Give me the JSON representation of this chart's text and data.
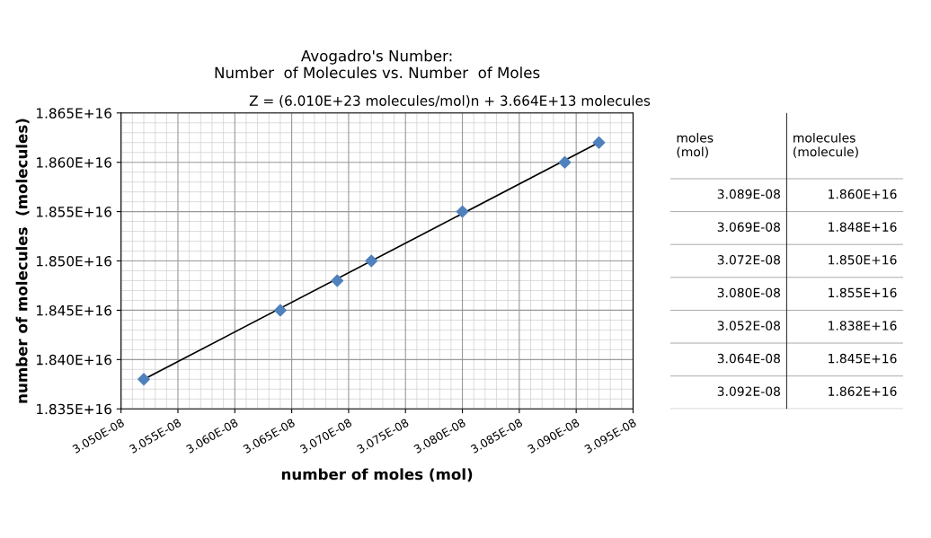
{
  "chart_data": {
    "type": "scatter",
    "title": "Avogadro's Number:\nNumber  of Molecules vs. Number  of Moles",
    "xlabel": "number of moles (mol)",
    "ylabel": "number of molecules  (molecules)",
    "x": [
      3.089e-08,
      3.069e-08,
      3.072e-08,
      3.08e-08,
      3.052e-08,
      3.064e-08,
      3.092e-08
    ],
    "series": [
      {
        "color": "#4f81bd",
        "marker": "diamond",
        "values": [
          1.86e+16,
          1.848e+16,
          1.85e+16,
          1.855e+16,
          1.838e+16,
          1.845e+16,
          1.862e+16
        ]
      },
      {
        "type": "line",
        "color": "#000000",
        "marker": "none",
        "line_style": "solid",
        "x": [
          3.052e-08,
          3.092e-08
        ],
        "values": [
          1.838e+16,
          1.862e+16
        ]
      }
    ],
    "annotations": [
      "Z = (6.010E+23 molecules/mol)n + 3.664E+13 molecules",
      "moles\n(mol)",
      "molecules\n(molecule)",
      "3.089E-08",
      "1.860E+16",
      "3.069E-08",
      "1.848E+16",
      "3.072E-08",
      "1.850E+16",
      "3.080E-08",
      "1.855E+16",
      "3.052E-08",
      "1.838E+16",
      "3.064E-08",
      "1.845E+16",
      "3.092E-08",
      "1.862E+16"
    ],
    "xlim": [
      3.05e-08,
      3.095e-08
    ],
    "xticks": [
      {
        "value": 3.05e-08,
        "label": "3.050E-08"
      },
      {
        "value": 3.055e-08,
        "label": "3.055E-08"
      },
      {
        "value": 3.06e-08,
        "label": "3.060E-08"
      },
      {
        "value": 3.065e-08,
        "label": "3.065E-08"
      },
      {
        "value": 3.07e-08,
        "label": "3.070E-08"
      },
      {
        "value": 3.075e-08,
        "label": "3.075E-08"
      },
      {
        "value": 3.08e-08,
        "label": "3.080E-08"
      },
      {
        "value": 3.085e-08,
        "label": "3.085E-08"
      },
      {
        "value": 3.09e-08,
        "label": "3.090E-08"
      },
      {
        "value": 3.095e-08,
        "label": "3.095E-08"
      }
    ],
    "ylim": [
      1.835e+16,
      1.865e+16
    ],
    "yticks": [
      {
        "value": 1.835e+16,
        "label": "1.835E+16"
      },
      {
        "value": 1.84e+16,
        "label": "1.840E+16"
      },
      {
        "value": 1.845e+16,
        "label": "1.845E+16"
      },
      {
        "value": 1.85e+16,
        "label": "1.850E+16"
      },
      {
        "value": 1.855e+16,
        "label": "1.855E+16"
      },
      {
        "value": 1.86e+16,
        "label": "1.860E+16"
      },
      {
        "value": 1.865e+16,
        "label": "1.865E+16"
      }
    ],
    "grid": true,
    "legend": false
  }
}
